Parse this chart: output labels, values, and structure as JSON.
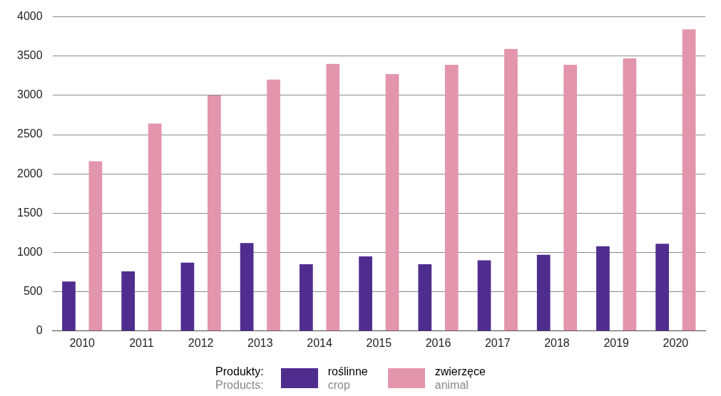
{
  "chart_data": {
    "type": "bar",
    "categories": [
      "2010",
      "2011",
      "2012",
      "2013",
      "2014",
      "2015",
      "2016",
      "2017",
      "2018",
      "2019",
      "2020"
    ],
    "series": [
      {
        "name": "roślinne\ncrop",
        "color": "#4f2d8f",
        "values": [
          630,
          760,
          870,
          1120,
          850,
          950,
          850,
          900,
          970,
          1080,
          1110
        ]
      },
      {
        "name": "zwierzęce\nanimal",
        "color": "#e295ac",
        "values": [
          2160,
          2640,
          3000,
          3200,
          3400,
          3270,
          3390,
          3590,
          3390,
          3470,
          3840
        ]
      }
    ],
    "ylim": [
      0,
      4000
    ],
    "yticks": [
      0,
      500,
      1000,
      1500,
      2000,
      2500,
      3000,
      3500,
      4000
    ],
    "grid": "y",
    "legend": "bottom",
    "legend_title": "Produkty:\nProducts:"
  }
}
